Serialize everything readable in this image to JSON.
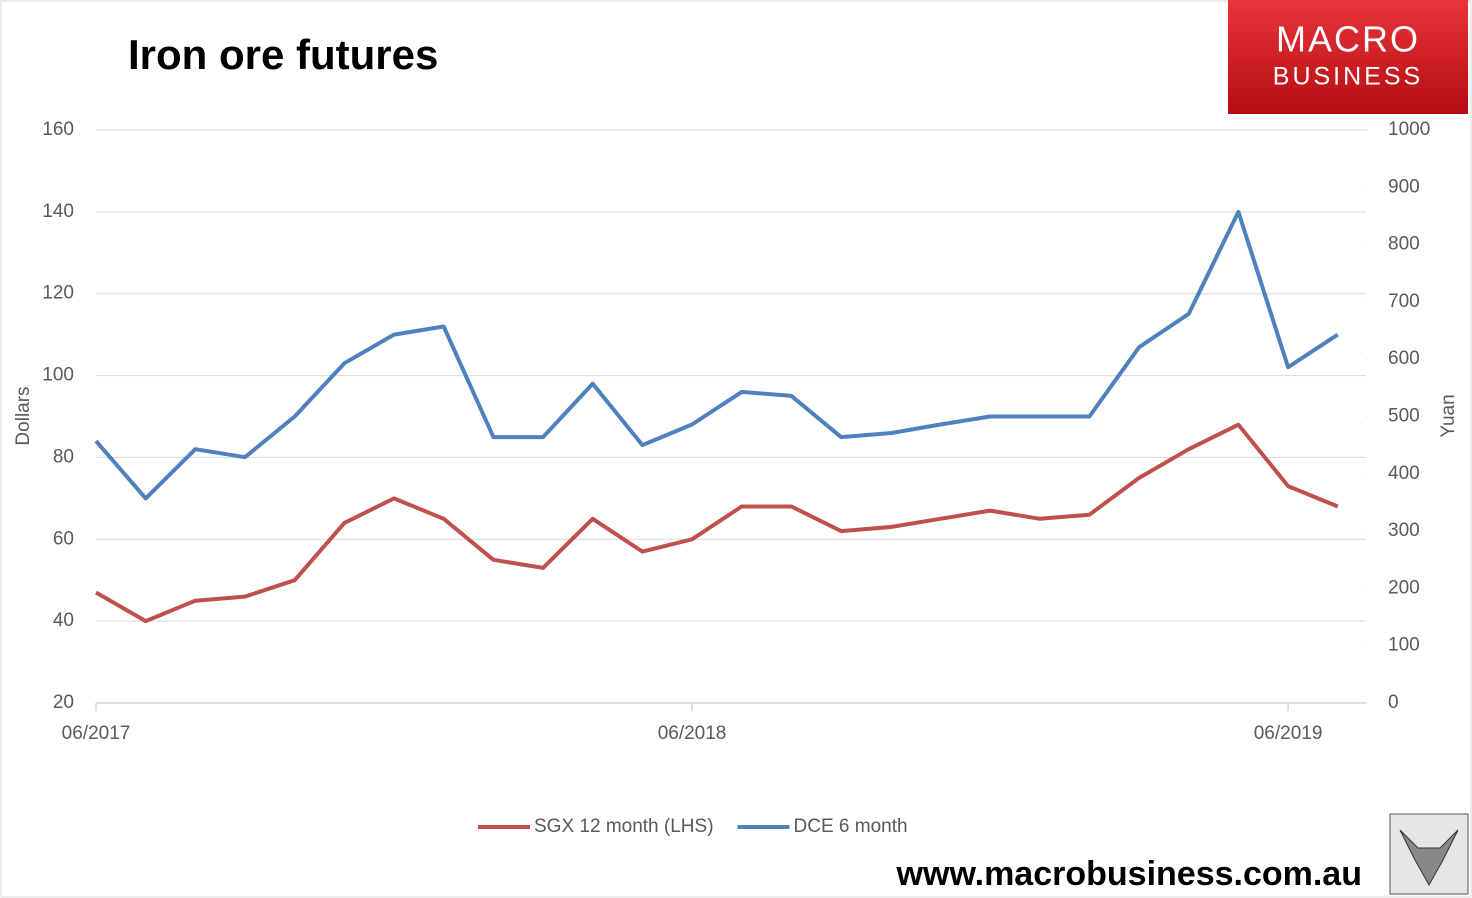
{
  "chart_data": {
    "type": "line",
    "title": "Iron ore futures",
    "categories": [
      "06/2017",
      null,
      null,
      null,
      null,
      null,
      null,
      null,
      null,
      null,
      null,
      null,
      "06/2018",
      null,
      null,
      null,
      null,
      null,
      null,
      null,
      null,
      null,
      null,
      null,
      "06/2019",
      null
    ],
    "series": [
      {
        "name": "SGX 12 month (LHS)",
        "color": "#c0504d",
        "axis": "y",
        "values": [
          47,
          40,
          45,
          46,
          50,
          64,
          70,
          65,
          55,
          53,
          65,
          57,
          60,
          68,
          68,
          62,
          63,
          65,
          67,
          65,
          66,
          75,
          82,
          88,
          73,
          68
        ]
      },
      {
        "name": "DCE 6 month",
        "color": "#4f81bd",
        "axis": "y2",
        "values": [
          457,
          357,
          443,
          429,
          500,
          593,
          643,
          657,
          464,
          464,
          557,
          450,
          486,
          543,
          536,
          464,
          471,
          486,
          500,
          500,
          500,
          621,
          679,
          857,
          586,
          643
        ]
      }
    ],
    "ylabel": "Dollars",
    "y2label": "Yuan",
    "ylim": [
      20,
      160
    ],
    "yticks": [
      20,
      40,
      60,
      80,
      100,
      120,
      140,
      160
    ],
    "y2lim": [
      0,
      1000
    ],
    "y2ticks": [
      0,
      100,
      200,
      300,
      400,
      500,
      600,
      700,
      800,
      900,
      1000
    ],
    "grid": true,
    "legend": "bottom"
  },
  "branding": {
    "logo_top": "MACRO",
    "logo_bottom": "BUSINESS",
    "website": "www.macrobusiness.com.au"
  }
}
